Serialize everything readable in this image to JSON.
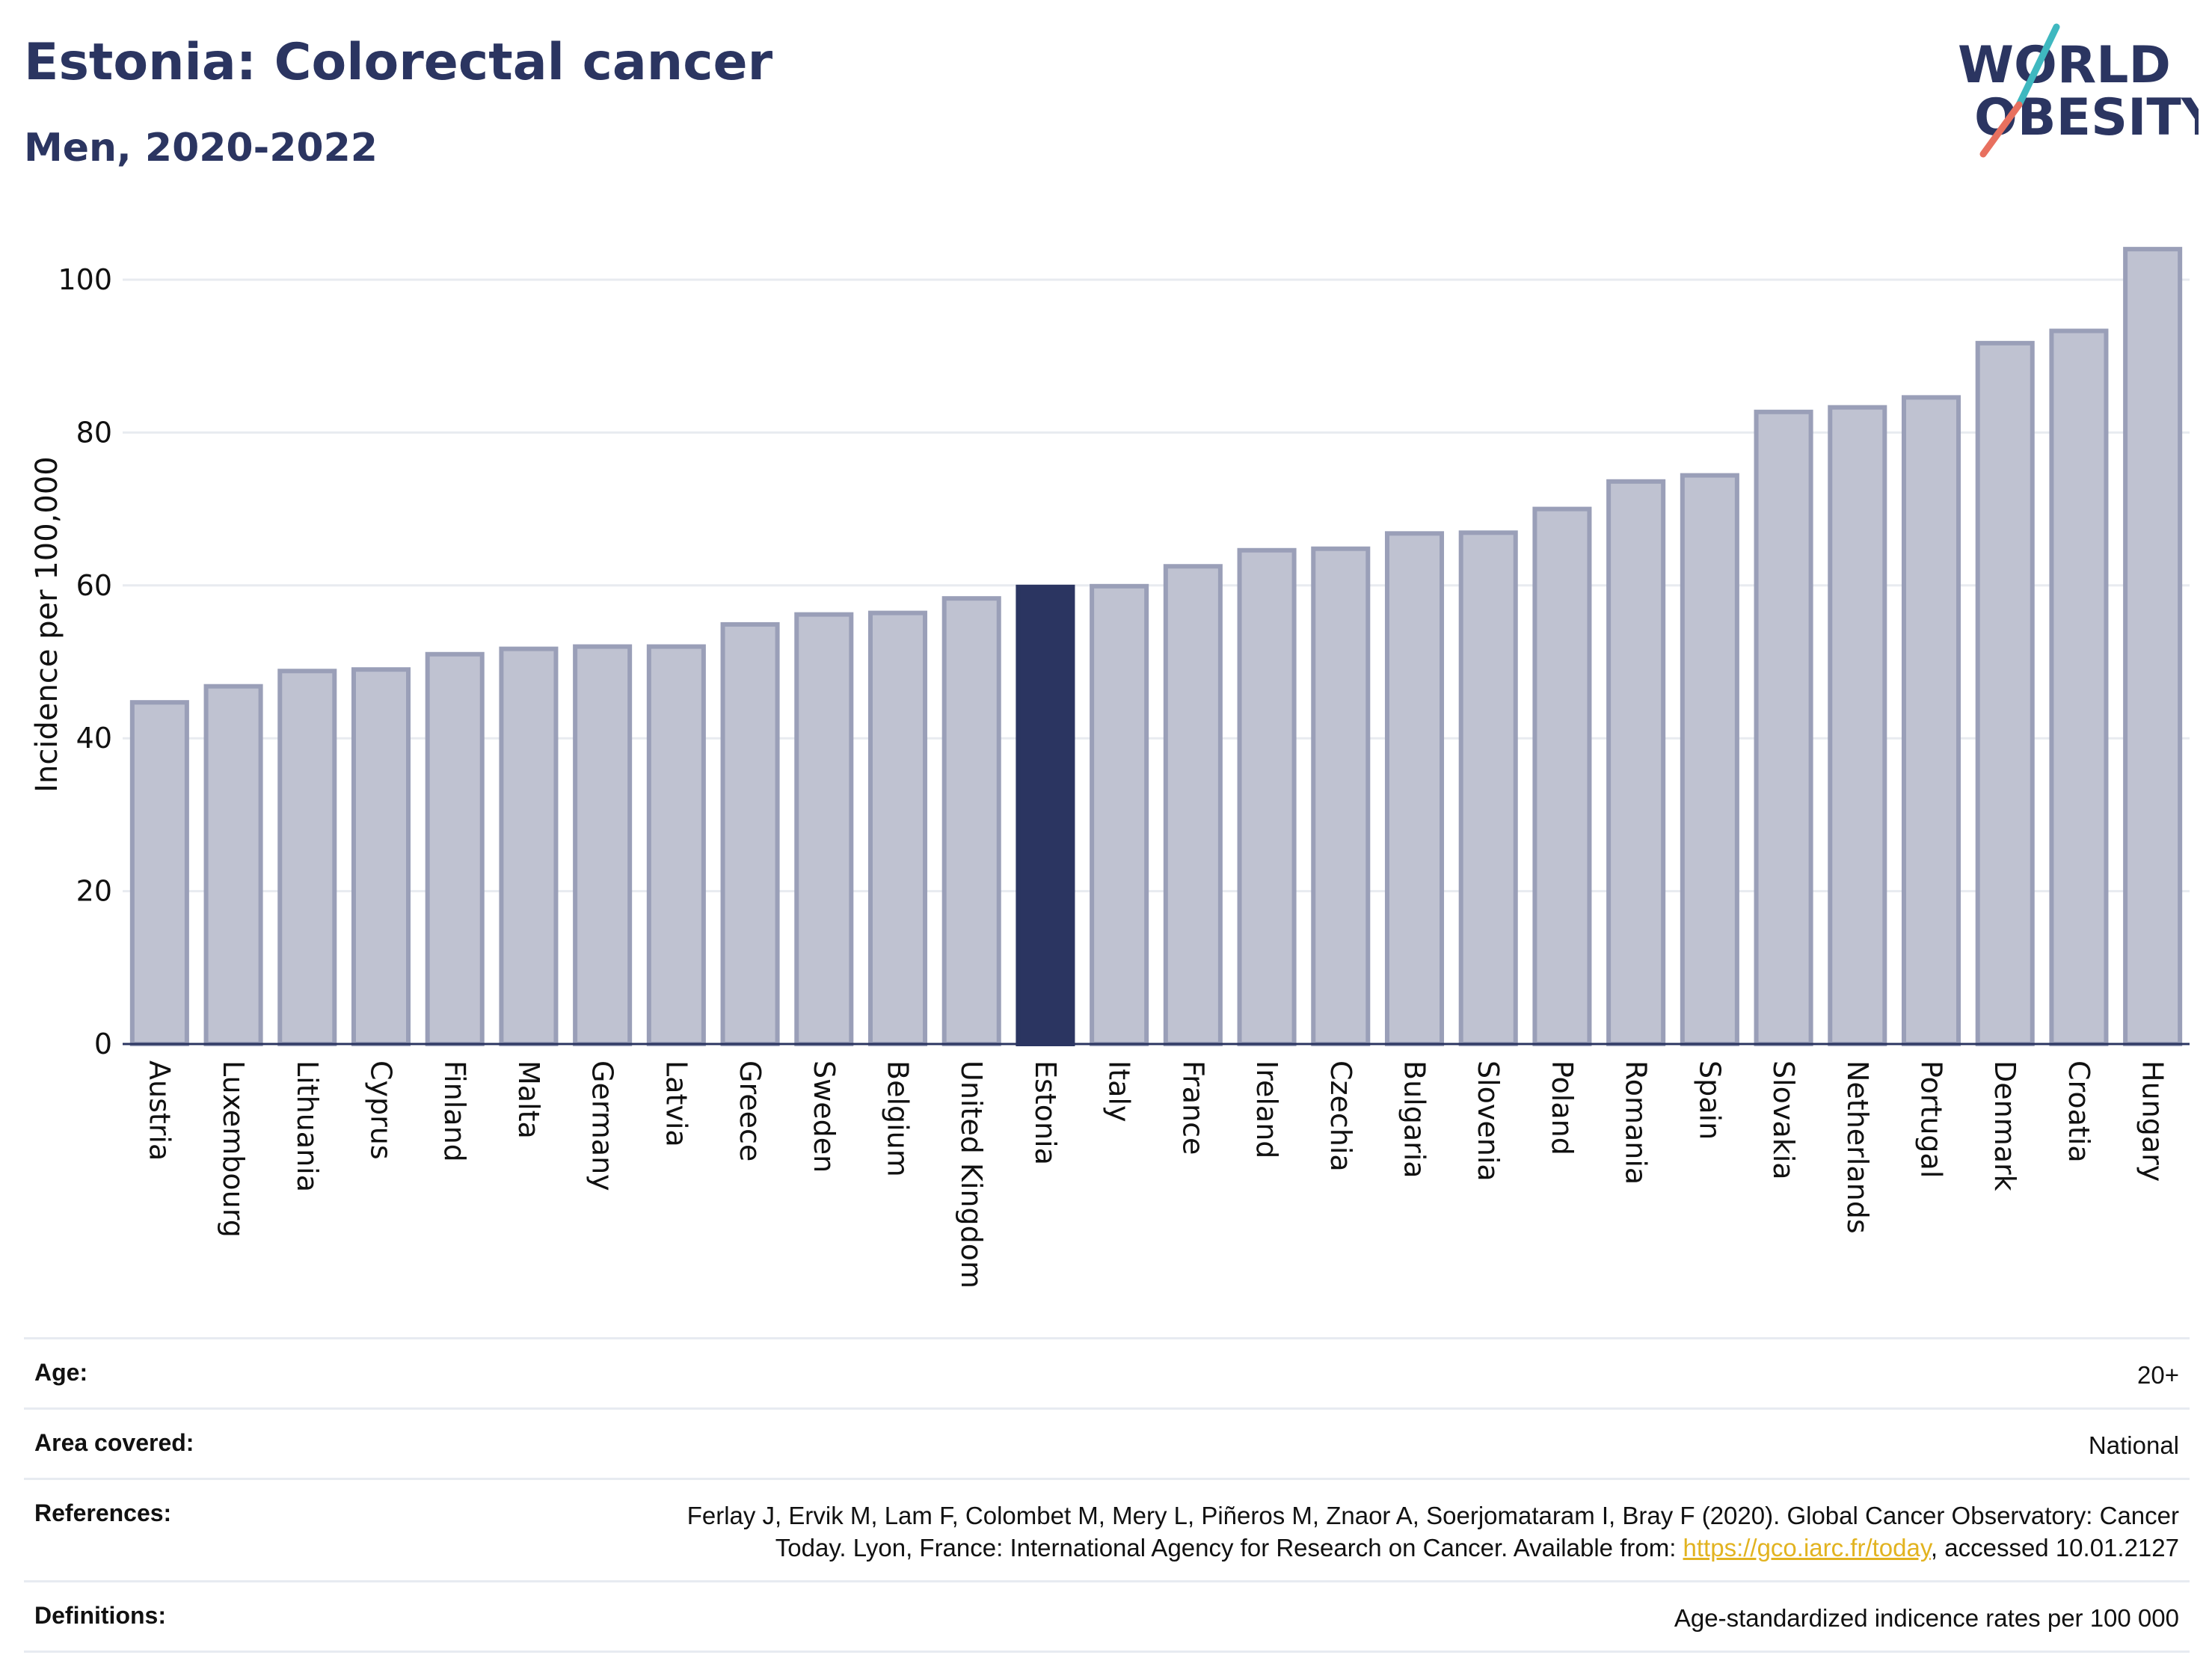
{
  "header": {
    "title": "Estonia: Colorectal cancer",
    "subtitle": "Men, 2020-2022"
  },
  "logo": {
    "line1": "WORLD",
    "line2": "OBESITY",
    "text_color": "#2b3561",
    "accent_teal": "#3fb8c0",
    "accent_coral": "#e8705f"
  },
  "chart_data": {
    "type": "bar",
    "ylabel": "Incidence per 100,000",
    "xlabel": "",
    "ylim": [
      0,
      108
    ],
    "yticks": [
      0,
      20,
      40,
      60,
      80,
      100
    ],
    "grid": true,
    "highlight": "Estonia",
    "colors": {
      "bar": "#bfc2d1",
      "bar_edge": "#9a9fb8",
      "highlight": "#2b3561",
      "grid": "#e8ebf0",
      "axis": "#2b3561"
    },
    "categories": [
      "Austria",
      "Luxembourg",
      "Lithuania",
      "Cyprus",
      "Finland",
      "Malta",
      "Germany",
      "Latvia",
      "Greece",
      "Sweden",
      "Belgium",
      "United Kingdom",
      "Estonia",
      "Italy",
      "France",
      "Ireland",
      "Czechia",
      "Bulgaria",
      "Slovenia",
      "Poland",
      "Romania",
      "Spain",
      "Slovakia",
      "Netherlands",
      "Portugal",
      "Denmark",
      "Croatia",
      "Hungary"
    ],
    "values": [
      44.7,
      46.8,
      48.8,
      49.0,
      51.0,
      51.7,
      52.0,
      52.0,
      54.9,
      56.2,
      56.4,
      58.3,
      59.8,
      59.9,
      62.5,
      64.6,
      64.8,
      66.8,
      66.9,
      70.0,
      73.6,
      74.4,
      82.7,
      83.3,
      84.6,
      91.7,
      93.3,
      104.0
    ]
  },
  "meta": {
    "age": {
      "label": "Age:",
      "value": "20+"
    },
    "area": {
      "label": "Area covered:",
      "value": "National"
    },
    "references": {
      "label": "References:",
      "line1": "Ferlay J, Ervik M, Lam F, Colombet M, Mery L, Piñeros M, Znaor A, Soerjomataram I, Bray F (2020). Global Cancer Observatory: Cancer",
      "line2_pre": "Today. Lyon, France: International Agency for Research on Cancer. Available from: ",
      "link": "https://gco.iarc.fr/today",
      "line2_post": ", accessed 10.01.2127"
    },
    "definitions": {
      "label": "Definitions:",
      "value": "Age-standardized indicence rates per 100 000"
    }
  }
}
